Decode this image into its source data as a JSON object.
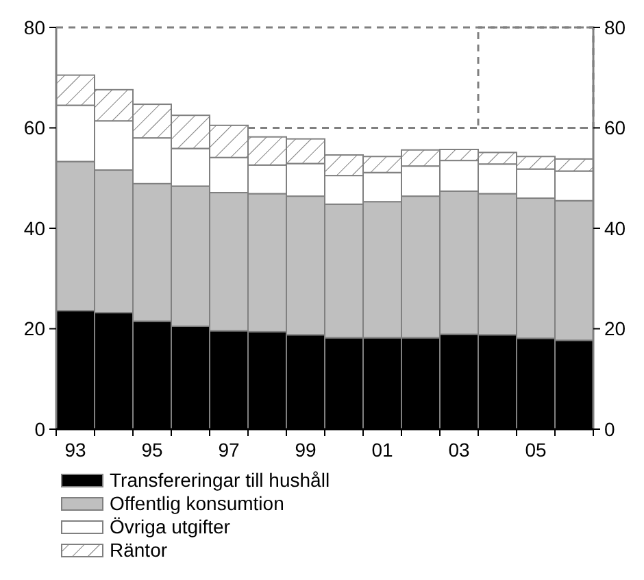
{
  "chart_data": {
    "type": "bar",
    "stacked": true,
    "categories": [
      "93",
      null,
      "95",
      null,
      "97",
      null,
      "99",
      null,
      "01",
      null,
      "03",
      null,
      "05",
      null
    ],
    "series": [
      {
        "name": "Transfereringar till hushåll",
        "color": "#000000",
        "values": [
          23.6,
          23.2,
          21.5,
          20.5,
          19.6,
          19.4,
          18.8,
          18.2,
          18.2,
          18.2,
          18.9,
          18.8,
          18.1,
          17.7
        ]
      },
      {
        "name": "Offentlig konsumtion",
        "color": "#bfbfbf",
        "values": [
          29.7,
          28.4,
          27.4,
          27.9,
          27.5,
          27.5,
          27.6,
          26.6,
          27.1,
          28.2,
          28.5,
          28.1,
          27.9,
          27.8
        ]
      },
      {
        "name": "Övriga utgifter",
        "color": "#ffffff",
        "values": [
          11.2,
          9.8,
          9.1,
          7.5,
          7.0,
          5.7,
          6.5,
          5.7,
          5.8,
          6.0,
          6.1,
          5.9,
          5.8,
          5.9
        ]
      },
      {
        "name": "Räntor",
        "color": "#808080",
        "values": [
          6.0,
          6.2,
          6.7,
          6.6,
          6.4,
          5.6,
          4.9,
          4.1,
          3.2,
          3.2,
          2.2,
          2.3,
          2.5,
          2.4
        ]
      }
    ],
    "ylim": [
      0,
      80
    ],
    "yticks": [
      0,
      20,
      40,
      60,
      80
    ],
    "y2lim": [
      0,
      80
    ],
    "y2ticks": [
      0,
      20,
      40,
      60,
      80
    ],
    "ref_lines": [
      {
        "axis": "y",
        "value": 60,
        "color": "#808080",
        "line_style": "dashed"
      }
    ],
    "legend": "bottom"
  }
}
